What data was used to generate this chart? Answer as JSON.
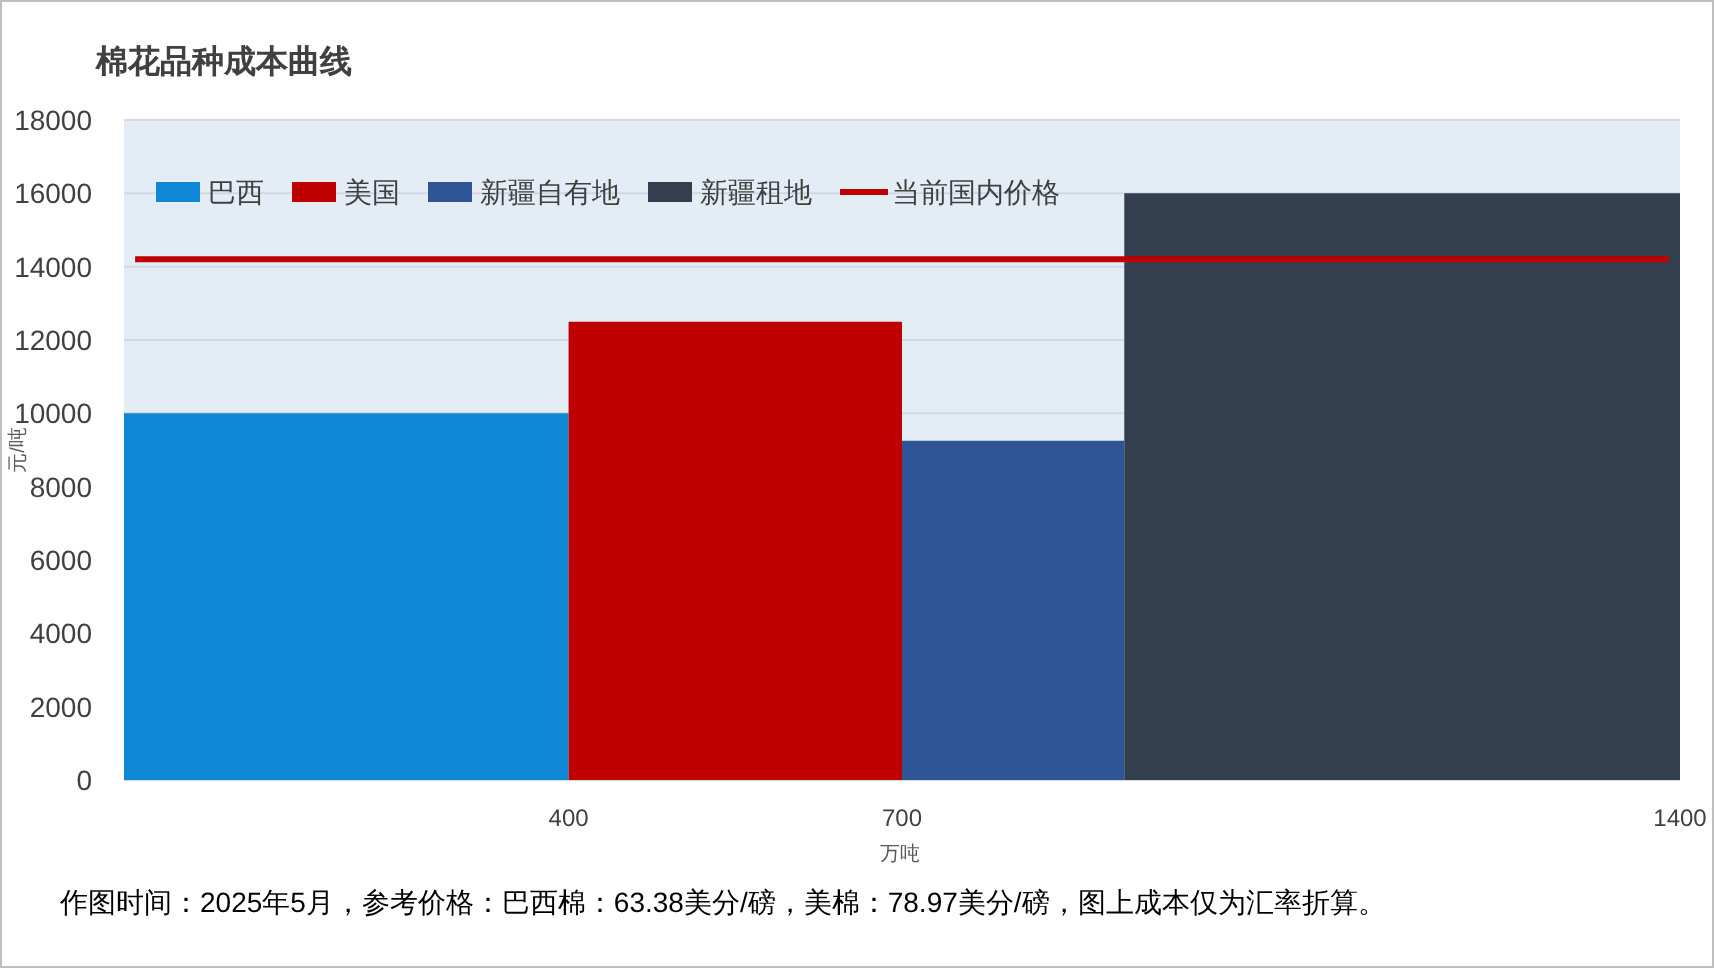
{
  "chart_data": {
    "type": "area",
    "title": "棉花品种成本曲线",
    "xlabel": "万吨",
    "ylabel": "元/吨",
    "annotations": [
      "作图时间：2025年5月，参考价格：巴西棉：63.38美分/磅，美棉：78.97美分/磅，图上成本仅为汇率折算。"
    ],
    "xlim": [
      0,
      1400
    ],
    "xticks": [
      400,
      700,
      1400
    ],
    "ylim": [
      0,
      18000
    ],
    "yticks": [
      0,
      2000,
      4000,
      6000,
      8000,
      10000,
      12000,
      14000,
      16000,
      18000
    ],
    "grid": "y",
    "legend": "top left",
    "series": [
      {
        "name": "巴西",
        "color": "#0e87d6",
        "x": [
          0,
          400
        ],
        "values": [
          10000,
          10000
        ]
      },
      {
        "name": "美国",
        "color": "#c00000",
        "x": [
          400,
          700
        ],
        "values": [
          12500,
          12500
        ]
      },
      {
        "name": "新疆自有地",
        "color": "#2e5596",
        "x": [
          700,
          900
        ],
        "values": [
          9250,
          9250
        ]
      },
      {
        "name": "新疆租地",
        "color": "#333f4f",
        "x": [
          900,
          1400
        ],
        "values": [
          16000,
          16000
        ]
      },
      {
        "name": "当前国内价格",
        "type": "line",
        "color": "#c00000",
        "x": [
          10,
          1390
        ],
        "values": [
          14200,
          14200
        ]
      }
    ]
  }
}
